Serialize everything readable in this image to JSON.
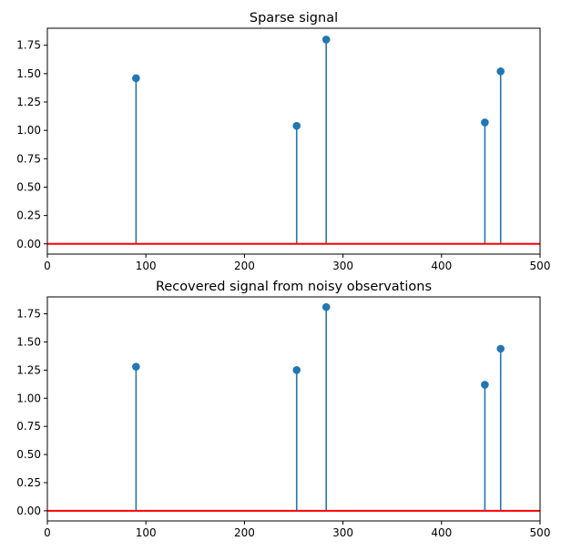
{
  "chart_data": [
    {
      "type": "stem",
      "title": "Sparse signal",
      "xlim": [
        0,
        500
      ],
      "ylim": [
        -0.09,
        1.9
      ],
      "xticks": [
        0,
        100,
        200,
        300,
        400,
        500
      ],
      "xtick_labels": [
        "0",
        "100",
        "200",
        "300",
        "400",
        "500"
      ],
      "yticks": [
        0.0,
        0.25,
        0.5,
        0.75,
        1.0,
        1.25,
        1.5,
        1.75
      ],
      "ytick_labels": [
        "0.00",
        "0.25",
        "0.50",
        "0.75",
        "1.00",
        "1.25",
        "1.50",
        "1.75"
      ],
      "stem_color": "#1f77b4",
      "baseline_color": "#ff0000",
      "x": [
        90,
        253,
        283,
        444,
        460
      ],
      "y": [
        1.46,
        1.04,
        1.8,
        1.07,
        1.52
      ]
    },
    {
      "type": "stem",
      "title": "Recovered signal from noisy observations",
      "xlim": [
        0,
        500
      ],
      "ylim": [
        -0.09,
        1.9
      ],
      "xticks": [
        0,
        100,
        200,
        300,
        400,
        500
      ],
      "xtick_labels": [
        "0",
        "100",
        "200",
        "300",
        "400",
        "500"
      ],
      "yticks": [
        0.0,
        0.25,
        0.5,
        0.75,
        1.0,
        1.25,
        1.5,
        1.75
      ],
      "ytick_labels": [
        "0.00",
        "0.25",
        "0.50",
        "0.75",
        "1.00",
        "1.25",
        "1.50",
        "1.75"
      ],
      "stem_color": "#1f77b4",
      "baseline_color": "#ff0000",
      "x": [
        90,
        253,
        283,
        444,
        460
      ],
      "y": [
        1.28,
        1.25,
        1.81,
        1.12,
        1.44
      ]
    }
  ]
}
